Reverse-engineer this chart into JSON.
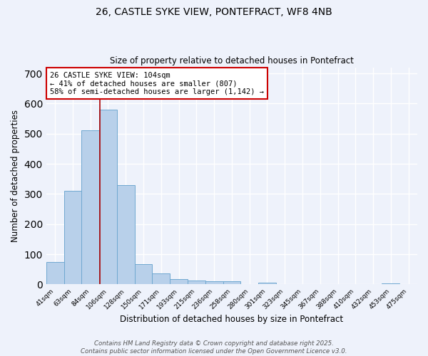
{
  "title_line1": "26, CASTLE SYKE VIEW, PONTEFRACT, WF8 4NB",
  "title_line2": "Size of property relative to detached houses in Pontefract",
  "xlabel": "Distribution of detached houses by size in Pontefract",
  "ylabel": "Number of detached properties",
  "categories": [
    "41sqm",
    "63sqm",
    "84sqm",
    "106sqm",
    "128sqm",
    "150sqm",
    "171sqm",
    "193sqm",
    "215sqm",
    "236sqm",
    "258sqm",
    "280sqm",
    "301sqm",
    "323sqm",
    "345sqm",
    "367sqm",
    "388sqm",
    "410sqm",
    "432sqm",
    "453sqm",
    "475sqm"
  ],
  "values": [
    75,
    310,
    510,
    580,
    330,
    68,
    37,
    18,
    13,
    10,
    10,
    0,
    6,
    0,
    0,
    0,
    0,
    0,
    0,
    4,
    0
  ],
  "bar_color": "#b8d0ea",
  "bar_edge_color": "#6fa8d0",
  "property_line_x": 2.55,
  "property_line_color": "#aa0000",
  "annotation_text": "26 CASTLE SYKE VIEW: 104sqm\n← 41% of detached houses are smaller (807)\n58% of semi-detached houses are larger (1,142) →",
  "annotation_box_color": "#ffffff",
  "annotation_box_edge_color": "#cc0000",
  "ylim": [
    0,
    720
  ],
  "yticks": [
    0,
    100,
    200,
    300,
    400,
    500,
    600,
    700
  ],
  "background_color": "#eef2fb",
  "footer_line1": "Contains HM Land Registry data © Crown copyright and database right 2025.",
  "footer_line2": "Contains public sector information licensed under the Open Government Licence v3.0."
}
